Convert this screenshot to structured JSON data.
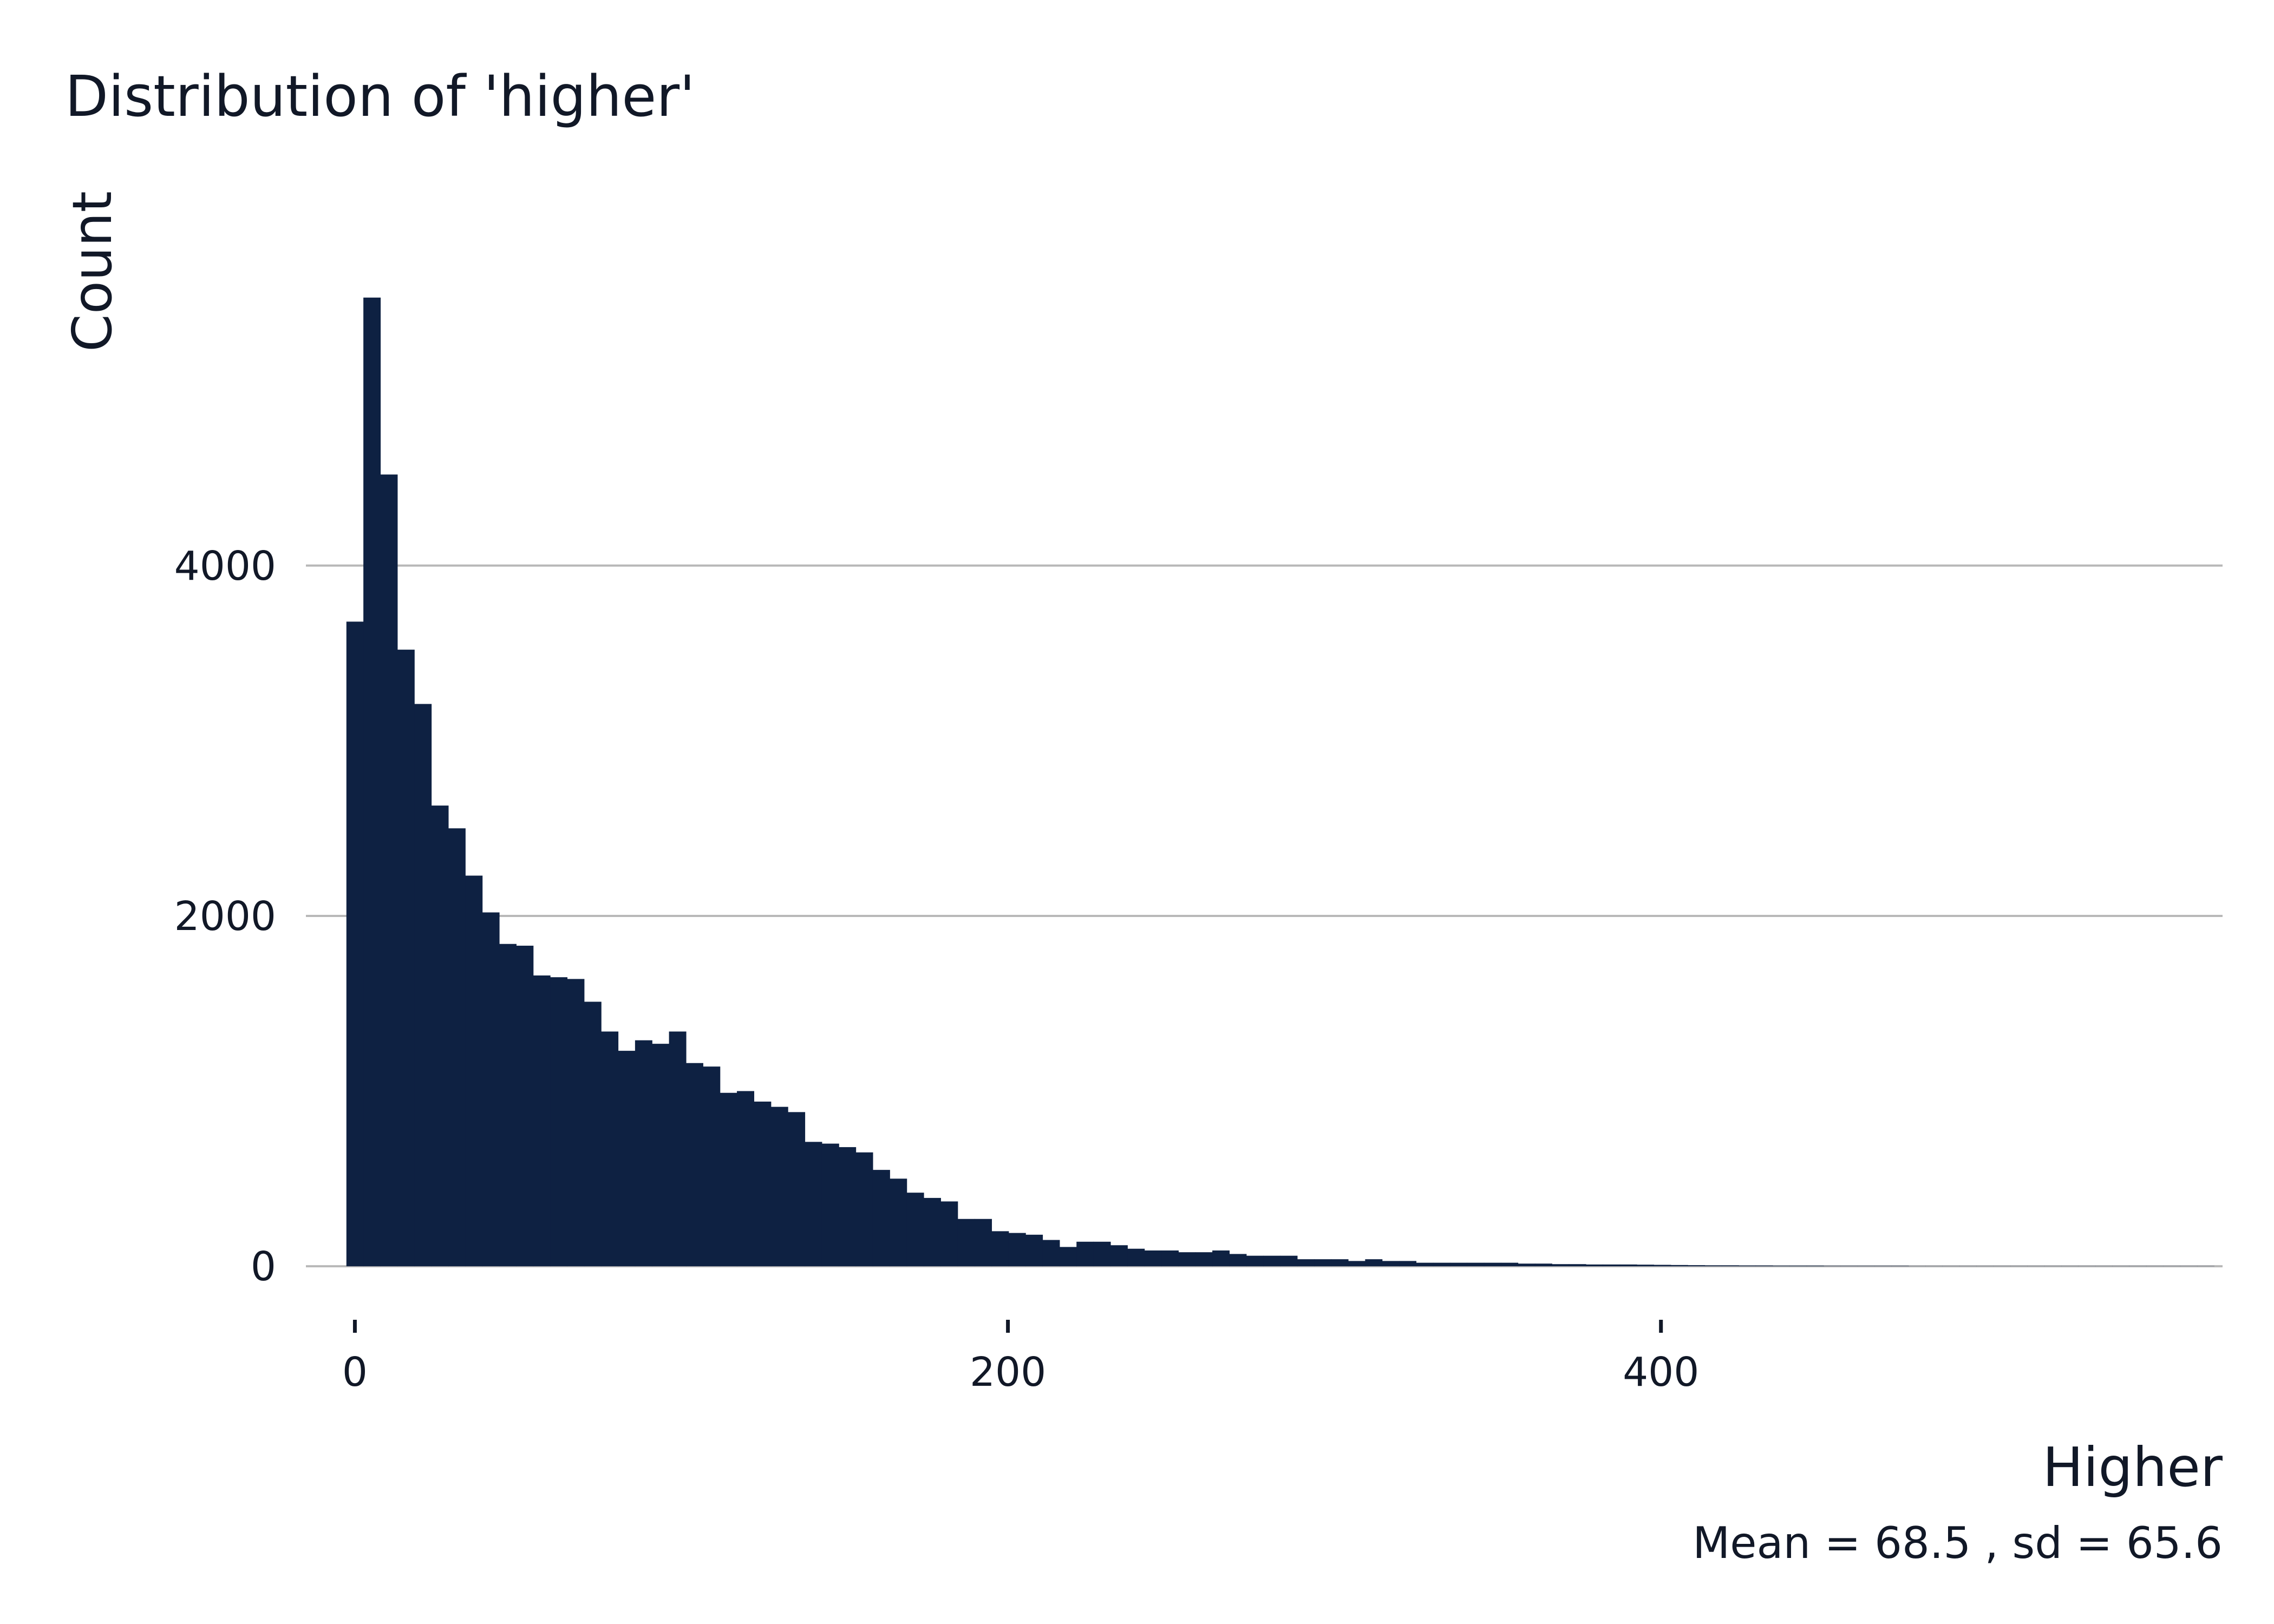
{
  "chart_data": {
    "type": "bar",
    "title": "Distribution of 'higher'",
    "xlabel": "Higher",
    "ylabel": "Count",
    "caption": "Mean = 68.5 , sd = 65.6",
    "xlim": [
      -15,
      572
    ],
    "ylim": [
      -250,
      5900
    ],
    "xticks": [
      0,
      200,
      400
    ],
    "yticks": [
      0,
      2000,
      4000
    ],
    "grid": "horizontal",
    "bar_color": "#0e2142",
    "bin_width": 5.2,
    "bin_start": -2.6,
    "values": [
      3680,
      5530,
      4520,
      3520,
      3210,
      2630,
      2500,
      2230,
      2020,
      1840,
      1830,
      1660,
      1650,
      1640,
      1510,
      1340,
      1230,
      1290,
      1270,
      1340,
      1160,
      1140,
      990,
      1000,
      940,
      910,
      880,
      710,
      700,
      680,
      650,
      550,
      500,
      420,
      390,
      370,
      270,
      270,
      200,
      190,
      180,
      150,
      110,
      140,
      140,
      120,
      100,
      90,
      90,
      80,
      80,
      90,
      70,
      60,
      60,
      60,
      40,
      40,
      40,
      30,
      40,
      30,
      30,
      20,
      20,
      20,
      20,
      20,
      20,
      15,
      15,
      12,
      12,
      10,
      10,
      10,
      9,
      8,
      7,
      6,
      5,
      5,
      4,
      4,
      3,
      3,
      3,
      2,
      2,
      2,
      2,
      2,
      1,
      1,
      1,
      1,
      1,
      1,
      1,
      1,
      1,
      1,
      1,
      1,
      1,
      1,
      1,
      1,
      1,
      1
    ]
  }
}
